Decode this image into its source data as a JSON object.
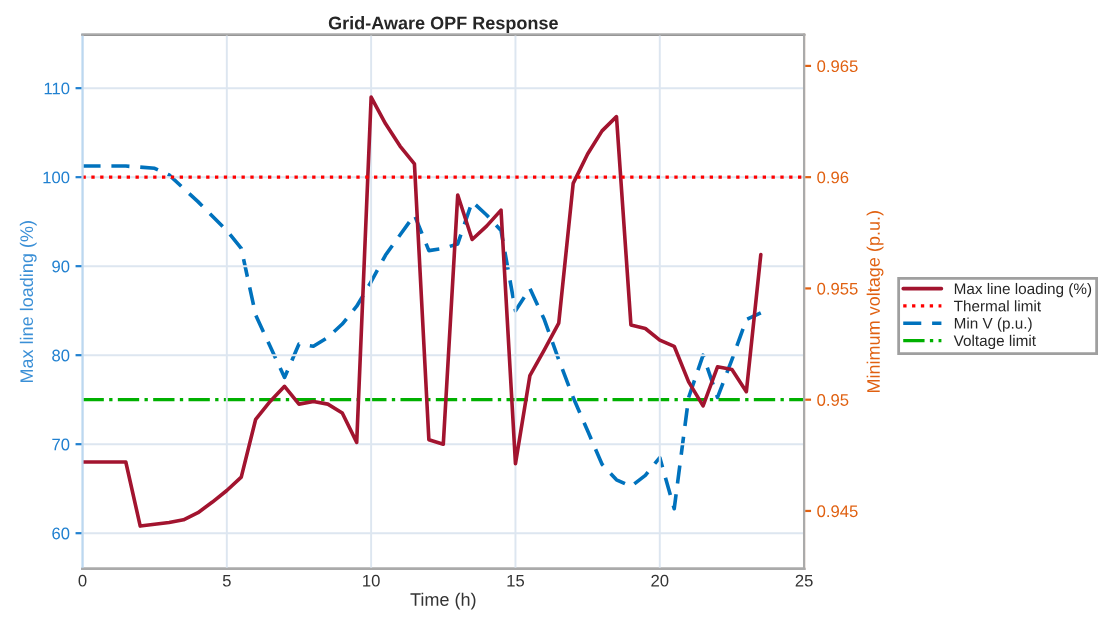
{
  "chart_data": {
    "type": "line",
    "title": "Grid-Aware OPF Response",
    "xlabel": "Time (h)",
    "ylabel": "Max line loading (%)",
    "y2label": "Minimum voltage (p.u.)",
    "series": [
      {
        "name": "Max line loading (%)",
        "color": "#a2142f",
        "line_style": "solid",
        "x": [
          0,
          1.5,
          2,
          3,
          3.5,
          4,
          4.5,
          5,
          5.5,
          6,
          6.5,
          7,
          7.5,
          8,
          8.5,
          9,
          9.5,
          10,
          10.5,
          11,
          11.5,
          12,
          12.5,
          13,
          13.5,
          14,
          14.5,
          15,
          15.5,
          16,
          16.5,
          17,
          17.5,
          18,
          18.5,
          19,
          19.5,
          20,
          20.5,
          21,
          21.5,
          22,
          22.5,
          23,
          23.5
        ],
        "values": [
          68,
          68,
          60.8,
          61.2,
          61.5,
          62.3,
          63.5,
          64.8,
          66.3,
          72.8,
          74.8,
          76.5,
          74.5,
          74.8,
          74.5,
          73.5,
          70.2,
          109,
          106,
          103.5,
          101.5,
          70.5,
          70,
          98,
          93,
          94.5,
          96.3,
          67.8,
          77.7,
          80.6,
          83.6,
          99.3,
          102.6,
          105.2,
          106.8,
          83.4,
          83,
          81.7,
          81,
          77,
          74.3,
          78.7,
          78.4,
          75.9,
          91.3
        ]
      },
      {
        "name": "Min V (p.u.)",
        "color": "#0072bd",
        "line_style": "dashed",
        "axis": "y2",
        "x": [
          0,
          1.5,
          2.5,
          3,
          4,
          5,
          5.5,
          6,
          6.5,
          7,
          7.5,
          8,
          8.5,
          9,
          9.5,
          10,
          10.5,
          11,
          11.5,
          12,
          12.5,
          13,
          13.5,
          14,
          14.5,
          15,
          15.5,
          16,
          16.5,
          17,
          17.5,
          18,
          18.5,
          19,
          19.5,
          20,
          20.5,
          21,
          21.5,
          22,
          22.5,
          23,
          23.5
        ],
        "values": [
          0.9605,
          0.9605,
          0.9604,
          0.9601,
          0.9589,
          0.9576,
          0.9568,
          0.9538,
          0.9524,
          0.951,
          0.9525,
          0.9524,
          0.9528,
          0.9534,
          0.9542,
          0.9553,
          0.9565,
          0.9574,
          0.9583,
          0.9567,
          0.9568,
          0.957,
          0.9589,
          0.9583,
          0.9576,
          0.954,
          0.955,
          0.9536,
          0.9518,
          0.9501,
          0.9486,
          0.9471,
          0.9464,
          0.9461,
          0.9466,
          0.9474,
          0.9451,
          0.9501,
          0.952,
          0.9501,
          0.9518,
          0.9536,
          0.9539
        ]
      }
    ],
    "ref_lines": [
      {
        "axis": "y",
        "value": 100,
        "label": "Thermal limit",
        "color": "#ff0000",
        "line_style": "dotted"
      },
      {
        "axis": "y2",
        "value": 0.95,
        "label": "Voltage limit",
        "color": "#00b000",
        "line_style": "dashdot"
      }
    ],
    "xlim": [
      0,
      25
    ],
    "xticks": [
      0,
      5,
      10,
      15,
      20,
      25
    ],
    "ylim": [
      56,
      116
    ],
    "yticks": [
      60,
      70,
      80,
      90,
      100,
      110
    ],
    "y2lim": [
      0.9424,
      0.9664
    ],
    "y2ticks": [
      0.945,
      0.95,
      0.955,
      0.96,
      0.965
    ],
    "grid": true,
    "legend": "right",
    "marker": "none"
  }
}
